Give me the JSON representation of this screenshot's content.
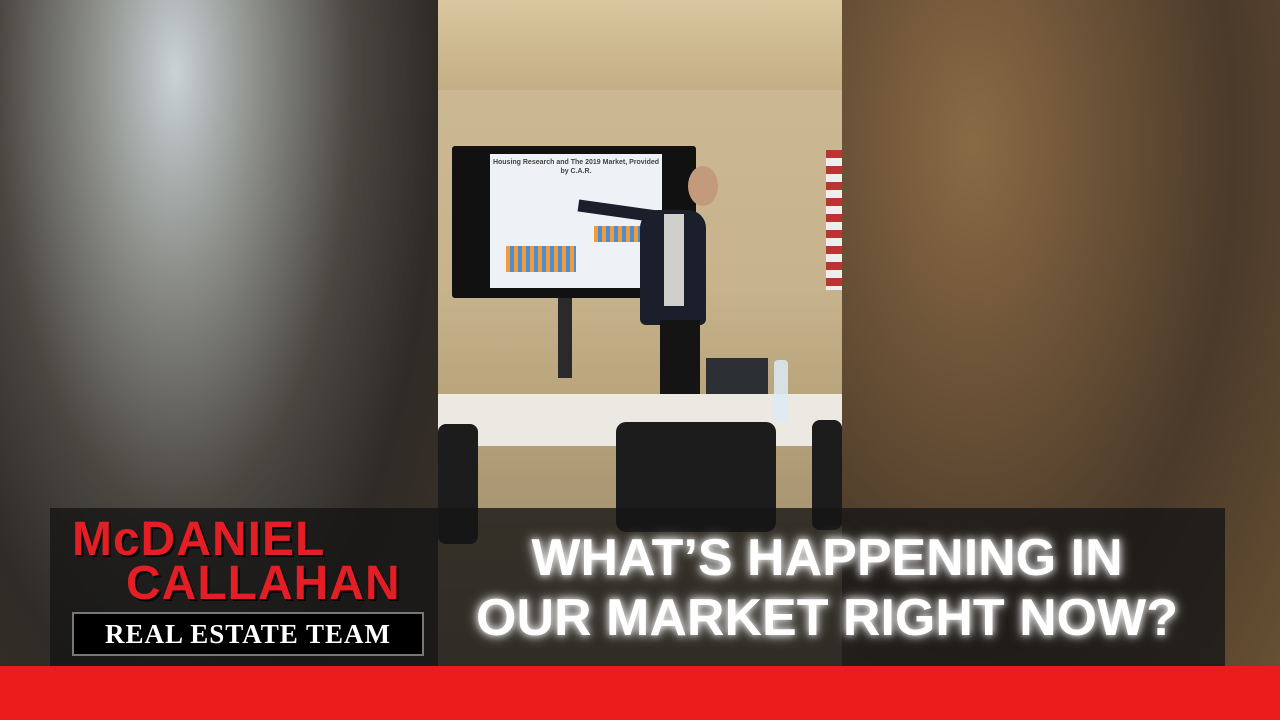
{
  "scene": {
    "description_words": [],
    "slide": {
      "title": "Housing Research and The 2019 Market, Provided by C.A.R."
    }
  },
  "overlay": {
    "logo_line1": "McDANIEL",
    "logo_line2": "CALLAHAN",
    "logo_sub": "REAL ESTATE TEAM",
    "headline_line1": "WHAT’S HAPPENING IN",
    "headline_line2": "OUR MARKET RIGHT NOW?"
  },
  "colors": {
    "brand_red": "#e31e24",
    "bottom_bar": "#ec1c1c",
    "banner_bg": "#141414"
  }
}
